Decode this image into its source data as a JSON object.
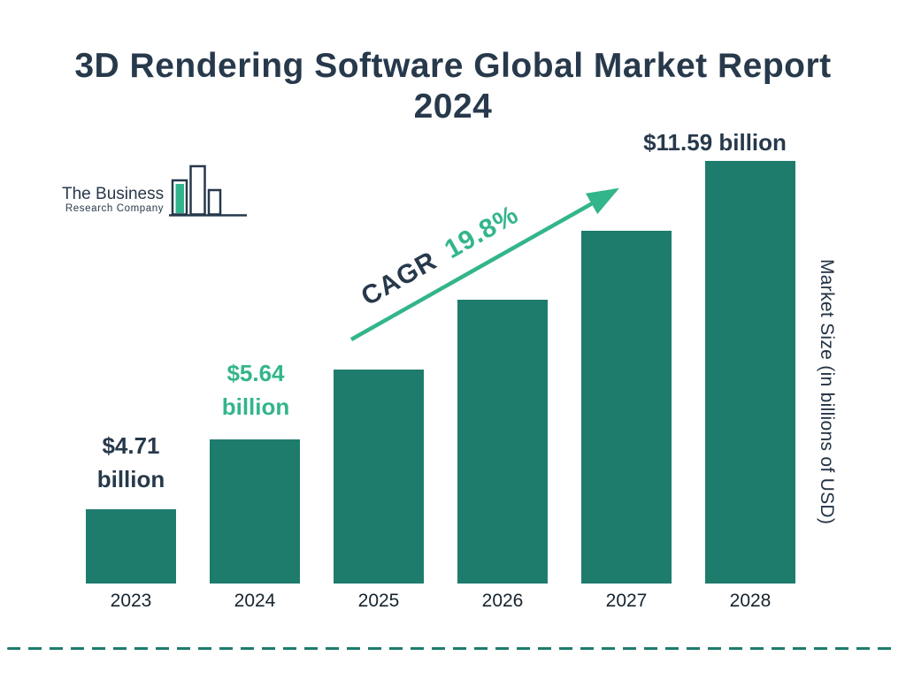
{
  "title": {
    "line1": "3D Rendering Software Global Market Report",
    "line2": "2024"
  },
  "logo": {
    "name_line1": "The Business",
    "name_line2": "Research Company"
  },
  "chart_data": {
    "type": "bar",
    "title": "3D Rendering Software Global Market Report 2024",
    "categories": [
      "2023",
      "2024",
      "2025",
      "2026",
      "2027",
      "2028"
    ],
    "values": [
      4.71,
      5.64,
      6.76,
      8.1,
      9.67,
      11.59
    ],
    "xlabel": "",
    "ylabel": "Market Size (in billions of USD)",
    "value_labels": {
      "2023": {
        "line1": "$4.71",
        "line2": "billion"
      },
      "2024": {
        "line1": "$5.64",
        "line2": "billion"
      },
      "2028": {
        "line1": "$11.59 billion"
      }
    },
    "cagr": {
      "label": "CAGR",
      "value": "19.8%"
    },
    "legend": "none",
    "grid": "off",
    "colors": {
      "bar": "#1e7c6d",
      "green": "#33b58c",
      "navy": "#27394b",
      "axis_text": "#16242f"
    }
  }
}
